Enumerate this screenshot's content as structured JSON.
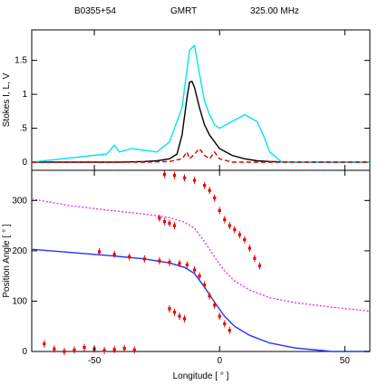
{
  "header": {
    "source": "B0355+54",
    "telescope": "GMRT",
    "frequency": "325.00  MHz"
  },
  "colors": {
    "total_intensity": "#000000",
    "linear_pol": "#00e5ee",
    "circular_pol": "#dd0000",
    "pa_points": "#ee0000",
    "rvm_fit": "#2233ff",
    "rvm_orthogonal": "#ee22ee"
  },
  "chart_data": [
    {
      "type": "line",
      "ylabel": "Stokes I, L, V",
      "xlim": [
        -75,
        60
      ],
      "ylim": [
        -0.12,
        1.95
      ],
      "x_ticks": [
        -50,
        0,
        50
      ],
      "y_ticks": [
        0,
        0.5,
        1,
        1.5
      ],
      "y_tick_labels": [
        "0",
        ".5",
        "1",
        "1.5"
      ],
      "series": [
        {
          "key": "total_intensity",
          "x": [
            -75,
            -40,
            -30,
            -25,
            -20,
            -17,
            -15,
            -13,
            -12,
            -11,
            -10,
            -8,
            -6,
            -4,
            -2,
            0,
            5,
            10,
            15,
            20,
            30,
            60
          ],
          "y": [
            0,
            0,
            0.01,
            0.02,
            0.05,
            0.12,
            0.4,
            0.95,
            1.18,
            1.19,
            1.1,
            0.8,
            0.55,
            0.4,
            0.3,
            0.2,
            0.1,
            0.05,
            0.02,
            0.01,
            0,
            0
          ]
        },
        {
          "key": "linear_pol",
          "x": [
            -75,
            -45,
            -42,
            -40,
            -35,
            -25,
            -20,
            -15,
            -12,
            -10,
            -8,
            -6,
            -4,
            -2,
            0,
            5,
            10,
            15,
            18,
            20,
            25,
            60
          ],
          "y": [
            0,
            0.12,
            0.25,
            0.15,
            0.2,
            0.15,
            0.3,
            0.8,
            1.65,
            1.72,
            1.3,
            0.9,
            0.7,
            0.55,
            0.5,
            0.6,
            0.7,
            0.6,
            0.35,
            0.15,
            0,
            0
          ]
        },
        {
          "key": "circular_pol",
          "x": [
            -75,
            -30,
            -20,
            -15,
            -13,
            -12,
            -10,
            -8,
            -6,
            -4,
            -2,
            0,
            5,
            10,
            60
          ],
          "y": [
            0,
            0,
            0.01,
            0.05,
            0.15,
            0.05,
            0.12,
            0.2,
            0.1,
            0.05,
            0.15,
            0.05,
            0,
            0,
            0
          ]
        }
      ]
    },
    {
      "type": "scatter",
      "xlabel": "Longitude [ ° ]",
      "ylabel": "Position Angle [ ° ]",
      "xlim": [
        -75,
        60
      ],
      "ylim": [
        0,
        360
      ],
      "x_ticks": [
        -50,
        0,
        50
      ],
      "y_ticks": [
        0,
        100,
        200,
        300
      ],
      "pa_tracks": [
        {
          "key": "main_track",
          "x": [
            -48,
            -42,
            -36,
            -30,
            -24,
            -20,
            -16,
            -13,
            -10,
            -8,
            -6,
            -4,
            -2,
            0,
            2,
            4
          ],
          "y": [
            198,
            193,
            188,
            184,
            180,
            177,
            175,
            172,
            162,
            150,
            132,
            110,
            92,
            70,
            55,
            42
          ]
        },
        {
          "key": "upper_track",
          "x": [
            -22,
            -18,
            -14,
            -10,
            -6,
            -4,
            -2,
            0,
            2,
            4,
            6,
            8,
            10,
            12,
            14,
            16
          ],
          "y": [
            352,
            350,
            345,
            340,
            330,
            320,
            305,
            280,
            262,
            250,
            242,
            232,
            222,
            205,
            185,
            170
          ]
        },
        {
          "key": "upper_isle",
          "x": [
            -24,
            -22,
            -20,
            -18
          ],
          "y": [
            265,
            258,
            255,
            250
          ]
        },
        {
          "key": "lower_isle",
          "x": [
            -20,
            -18,
            -16,
            -14
          ],
          "y": [
            85,
            78,
            70,
            65
          ]
        },
        {
          "key": "low_track",
          "x": [
            -70,
            -66,
            -62,
            -58,
            -54,
            -50,
            -46,
            -42,
            -38,
            -34
          ],
          "y": [
            15,
            5,
            0,
            3,
            8,
            5,
            2,
            4,
            6,
            3
          ]
        }
      ],
      "rvm_fit": {
        "x": [
          -75,
          -60,
          -45,
          -30,
          -20,
          -14,
          -10,
          -6,
          -2,
          2,
          6,
          12,
          20,
          30,
          45,
          60
        ],
        "y": [
          203,
          197,
          191,
          184,
          176,
          167,
          155,
          128,
          98,
          70,
          50,
          32,
          17,
          7,
          0,
          0
        ]
      },
      "rvm_orthogonal": {
        "x": [
          -75,
          -60,
          -45,
          -30,
          -20,
          -14,
          -10,
          -6,
          -2,
          2,
          6,
          12,
          20,
          30,
          45,
          60
        ],
        "y": [
          303,
          290,
          281,
          273,
          266,
          257,
          245,
          218,
          188,
          160,
          140,
          122,
          107,
          97,
          88,
          80
        ]
      }
    }
  ]
}
